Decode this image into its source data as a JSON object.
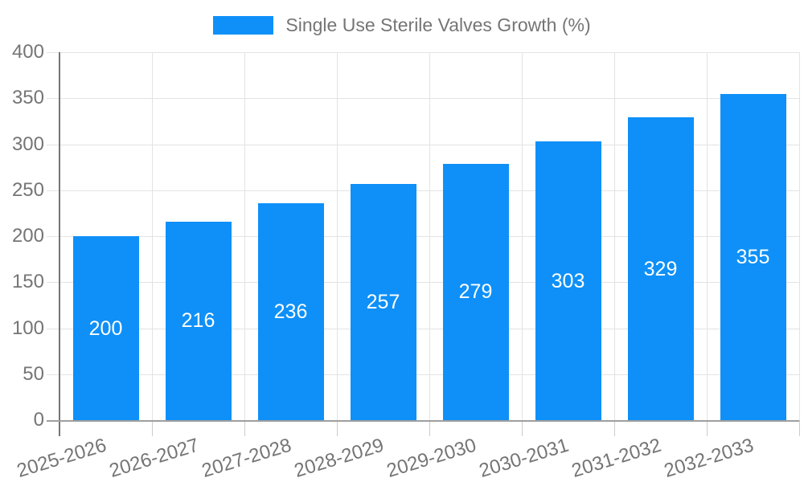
{
  "chart_data": {
    "type": "bar",
    "title": "",
    "legend_label": "Single Use Sterile Valves Growth (%)",
    "legend_position": "top",
    "categories": [
      "2025-2026",
      "2026-2027",
      "2027-2028",
      "2028-2029",
      "2029-2030",
      "2030-2031",
      "2031-2032",
      "2032-2033"
    ],
    "values": [
      200,
      216,
      236,
      257,
      279,
      303,
      329,
      355
    ],
    "xlabel": "",
    "ylabel": "",
    "ylim": [
      0,
      400
    ],
    "yticks": [
      0,
      50,
      100,
      150,
      200,
      250,
      300,
      350,
      400
    ],
    "grid": true,
    "bar_label_position": "inside-middle",
    "x_tick_rotation_deg": -17,
    "colors": {
      "bar": "#0e90f8",
      "bar_label": "#ffffff",
      "axis_text": "#757575",
      "axis_line": "#757575",
      "baseline": "#9e9e9e",
      "gridline": "#e3e3e3",
      "tick": "#cccccc",
      "background": "#ffffff"
    }
  }
}
